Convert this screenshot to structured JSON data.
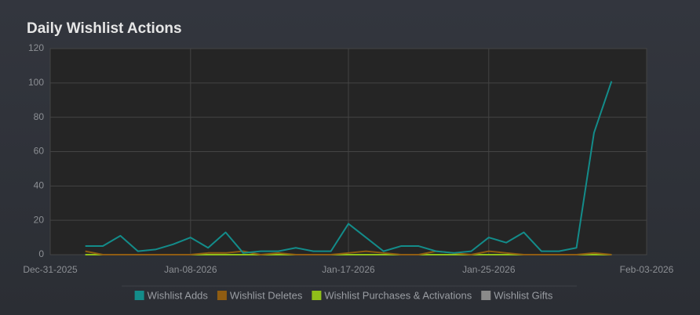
{
  "chart_data": {
    "type": "line",
    "title": "Daily Wishlist Actions",
    "x": [
      "Jan-02-2026",
      "Jan-03-2026",
      "Jan-04-2026",
      "Jan-05-2026",
      "Jan-06-2026",
      "Jan-07-2026",
      "Jan-08-2026",
      "Jan-09-2026",
      "Jan-10-2026",
      "Jan-11-2026",
      "Jan-12-2026",
      "Jan-13-2026",
      "Jan-14-2026",
      "Jan-15-2026",
      "Jan-16-2026",
      "Jan-17-2026",
      "Jan-18-2026",
      "Jan-19-2026",
      "Jan-20-2026",
      "Jan-21-2026",
      "Jan-22-2026",
      "Jan-23-2026",
      "Jan-24-2026",
      "Jan-25-2026",
      "Jan-26-2026",
      "Jan-27-2026",
      "Jan-28-2026",
      "Jan-29-2026",
      "Jan-30-2026",
      "Jan-31-2026",
      "Feb-01-2026"
    ],
    "series": [
      {
        "name": "Wishlist Adds",
        "color": "#138c8a",
        "values": [
          5,
          5,
          11,
          2,
          3,
          6,
          10,
          4,
          13,
          1,
          2,
          2,
          4,
          2,
          2,
          18,
          10,
          2,
          5,
          5,
          2,
          1,
          2,
          10,
          7,
          13,
          2,
          2,
          4,
          71,
          101
        ]
      },
      {
        "name": "Wishlist Deletes",
        "color": "#8f5c12",
        "values": [
          2,
          0,
          0,
          0,
          0,
          0,
          0,
          1,
          1,
          2,
          0,
          1,
          0,
          0,
          0,
          1,
          2,
          1,
          0,
          0,
          2,
          1,
          0,
          2,
          1,
          0,
          0,
          0,
          0,
          1,
          0
        ]
      },
      {
        "name": "Wishlist Purchases & Activations",
        "color": "#8fbf1a",
        "values": [
          0,
          0,
          0,
          0,
          0,
          0,
          0,
          0,
          0,
          0,
          0,
          0,
          0,
          0,
          0,
          0,
          0,
          0,
          0,
          0,
          0,
          0,
          0,
          0,
          0,
          0,
          0,
          0,
          0,
          0,
          0
        ]
      },
      {
        "name": "Wishlist Gifts",
        "color": "#8a8a8a",
        "values": [
          0,
          0,
          0,
          0,
          0,
          0,
          0,
          0,
          0,
          0,
          0,
          0,
          0,
          0,
          0,
          0,
          0,
          0,
          0,
          0,
          0,
          0,
          0,
          0,
          0,
          0,
          0,
          0,
          0,
          0,
          0
        ]
      }
    ],
    "xlim": [
      "Dec-31-2025",
      "Feb-03-2026"
    ],
    "xticks": [
      "Dec-31-2025",
      "Jan-08-2026",
      "Jan-17-2026",
      "Jan-25-2026",
      "Feb-03-2026"
    ],
    "ylim": [
      0,
      120
    ],
    "yticks": [
      0,
      20,
      40,
      60,
      80,
      100,
      120
    ],
    "grid": true,
    "legend": "bottom"
  }
}
